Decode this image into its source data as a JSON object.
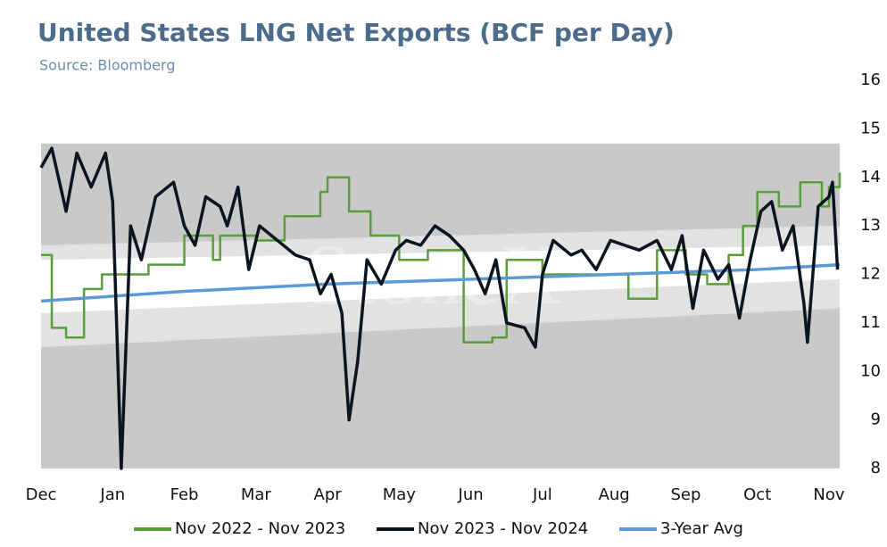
{
  "chart_data": {
    "type": "line",
    "title": "United States LNG Net Exports (BCF per Day)",
    "subtitle": "Source: Bloomberg",
    "watermark": "StoneX",
    "categories": [
      "Dec",
      "Jan",
      "Feb",
      "Mar",
      "Apr",
      "May",
      "Jun",
      "Jul",
      "Aug",
      "Sep",
      "Oct",
      "Nov"
    ],
    "xlim": [
      0,
      11.15
    ],
    "ylim": [
      8,
      16
    ],
    "yticks": [
      8,
      9,
      10,
      11,
      12,
      13,
      14,
      15,
      16
    ],
    "legend": "bottom",
    "bands": [
      {
        "color": "#c9c9c9",
        "x": [
          0,
          11.15
        ],
        "lower": [
          8,
          8
        ],
        "upper": [
          14.7,
          14.7
        ]
      },
      {
        "color": "#e2e2e2",
        "x": [
          0,
          11.15
        ],
        "lower": [
          10.5,
          11.3
        ],
        "upper": [
          12.6,
          13.0
        ]
      },
      {
        "color": "#ffffff",
        "x": [
          0,
          11.15
        ],
        "lower": [
          11.2,
          11.9
        ],
        "upper": [
          12.3,
          12.6
        ]
      }
    ],
    "series": [
      {
        "name": "Nov 2022 - Nov 2023",
        "color": "#5a9e3a",
        "step": true,
        "x": [
          0,
          0.15,
          0.35,
          0.6,
          0.85,
          1.5,
          2.0,
          2.4,
          2.5,
          3.0,
          3.4,
          3.9,
          4.0,
          4.3,
          4.6,
          5.0,
          5.4,
          5.9,
          6.3,
          6.5,
          7.0,
          8.2,
          8.6,
          9.0,
          9.3,
          9.6,
          9.8,
          10.0,
          10.3,
          10.6,
          10.9,
          11.0,
          11.15
        ],
        "values": [
          12.4,
          10.9,
          10.7,
          11.7,
          12.0,
          12.2,
          12.8,
          12.3,
          12.8,
          12.7,
          13.2,
          13.7,
          14.0,
          13.3,
          12.8,
          12.3,
          12.5,
          10.6,
          10.7,
          12.3,
          12.0,
          11.5,
          12.5,
          12.0,
          11.8,
          12.4,
          13.0,
          13.7,
          13.4,
          13.9,
          13.4,
          13.8,
          14.1
        ]
      },
      {
        "name": "Nov 2023 - Nov 2024",
        "color": "#0d1421",
        "x": [
          0,
          0.15,
          0.35,
          0.5,
          0.7,
          0.9,
          1.0,
          1.12,
          1.25,
          1.4,
          1.6,
          1.85,
          2.0,
          2.15,
          2.3,
          2.5,
          2.6,
          2.75,
          2.9,
          3.05,
          3.3,
          3.55,
          3.75,
          3.9,
          4.05,
          4.2,
          4.3,
          4.42,
          4.55,
          4.75,
          4.95,
          5.1,
          5.3,
          5.5,
          5.7,
          5.9,
          6.05,
          6.2,
          6.35,
          6.5,
          6.75,
          6.9,
          7.0,
          7.15,
          7.4,
          7.55,
          7.75,
          7.95,
          8.15,
          8.35,
          8.6,
          8.8,
          8.95,
          9.1,
          9.25,
          9.45,
          9.6,
          9.75,
          9.9,
          10.05,
          10.2,
          10.35,
          10.5,
          10.65,
          10.7,
          10.85,
          11.0,
          11.05,
          11.12
        ],
        "values": [
          14.2,
          14.6,
          13.3,
          14.5,
          13.8,
          14.5,
          13.5,
          8.0,
          13.0,
          12.3,
          13.6,
          13.9,
          13.0,
          12.6,
          13.6,
          13.4,
          13.0,
          13.8,
          12.1,
          13.0,
          12.7,
          12.4,
          12.3,
          11.6,
          12.0,
          11.2,
          9.0,
          10.2,
          12.3,
          11.8,
          12.5,
          12.7,
          12.6,
          13.0,
          12.8,
          12.5,
          12.1,
          11.6,
          12.3,
          11.0,
          10.9,
          10.5,
          12.0,
          12.7,
          12.4,
          12.5,
          12.1,
          12.7,
          12.6,
          12.5,
          12.7,
          12.1,
          12.8,
          11.3,
          12.5,
          11.9,
          12.2,
          11.1,
          12.3,
          13.3,
          13.5,
          12.5,
          13.0,
          11.4,
          10.6,
          13.4,
          13.6,
          13.9,
          12.1
        ]
      },
      {
        "name": "3-Year Avg",
        "color": "#5b9bd5",
        "x": [
          0,
          2,
          4,
          6,
          8,
          10,
          11.15
        ],
        "values": [
          11.45,
          11.65,
          11.8,
          11.9,
          12.0,
          12.1,
          12.2
        ]
      }
    ]
  }
}
